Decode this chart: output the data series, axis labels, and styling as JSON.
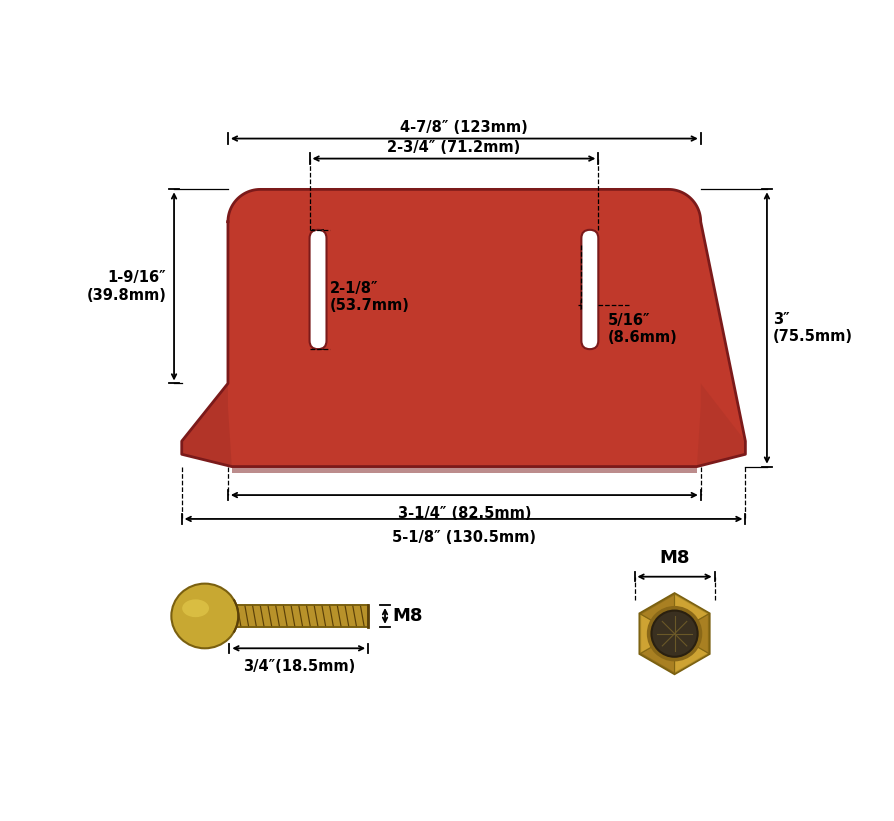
{
  "bg_color": "#ffffff",
  "red_color": "#c0392b",
  "red_shadow": "#7b1a1a",
  "red_mid": "#a93226",
  "black": "#000000",
  "dims": {
    "top_width_label": "4-7/8″ (123mm)",
    "slot_span_label": "2-3/4″ (71.2mm)",
    "slot_height_label": "2-1/8″\n(53.7mm)",
    "slot_width_label": "5/16″\n(8.6mm)",
    "left_height_label": "1-9/16″\n(39.8mm)",
    "right_height_label": "3″\n(75.5mm)",
    "bottom_inner_label": "3-1/4″ (82.5mm)",
    "bottom_outer_label": "5-1/8″ (130.5mm)",
    "bolt_length_label": "3/4″(18.5mm)",
    "bolt_dia_label": "M8",
    "nut_dia_label": "M8"
  },
  "font_size_dim": 10.5,
  "font_size_label": 12
}
